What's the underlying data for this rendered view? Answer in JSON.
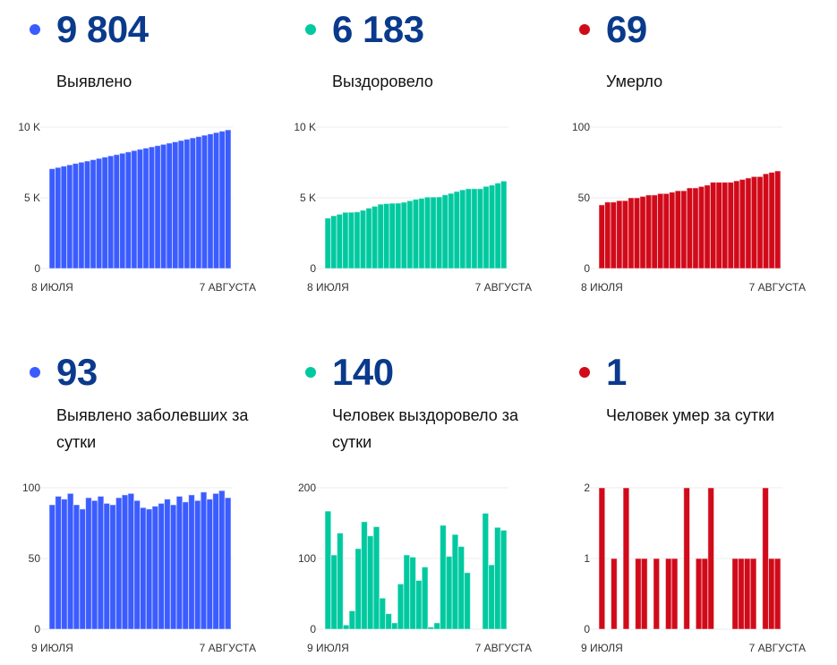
{
  "panels": [
    {
      "id": "cases-total",
      "value": "9 804",
      "label": "Выявлено",
      "color": "#3b5cff",
      "chart_data": {
        "type": "bar",
        "categories_range": [
          "8 ИЮЛЯ",
          "7 АВГУСТА"
        ],
        "x_labels": [
          "8 ИЮЛЯ",
          "7 АВГУСТА"
        ],
        "yticks": [
          {
            "v": 0,
            "t": "0"
          },
          {
            "v": 5000,
            "t": "5 K"
          },
          {
            "v": 10000,
            "t": "10 K"
          }
        ],
        "ylim": [
          0,
          10000
        ],
        "values": [
          7058,
          7146,
          7240,
          7332,
          7428,
          7516,
          7601,
          7694,
          7785,
          7879,
          7968,
          8056,
          8149,
          8244,
          8340,
          8431,
          8517,
          8602,
          8689,
          8778,
          8870,
          8958,
          9052,
          9142,
          9237,
          9328,
          9425,
          9517,
          9613,
          9711,
          9804
        ]
      }
    },
    {
      "id": "recovered-total",
      "value": "6 183",
      "label": "Выздоровело",
      "color": "#00c9a0",
      "chart_data": {
        "type": "bar",
        "x_labels": [
          "8 ИЮЛЯ",
          "7 АВГУСТА"
        ],
        "yticks": [
          {
            "v": 0,
            "t": "0"
          },
          {
            "v": 5000,
            "t": "5 K"
          },
          {
            "v": 10000,
            "t": "10 K"
          }
        ],
        "ylim": [
          0,
          10000
        ],
        "values": [
          3565,
          3732,
          3837,
          3973,
          3979,
          4005,
          4119,
          4271,
          4403,
          4548,
          4592,
          4614,
          4623,
          4687,
          4792,
          4894,
          4963,
          5051,
          5054,
          5063,
          5210,
          5313,
          5447,
          5564,
          5644,
          5644,
          5644,
          5808,
          5899,
          6043,
          6183
        ]
      }
    },
    {
      "id": "deaths-total",
      "value": "69",
      "label": "Умерло",
      "color": "#d10a1a",
      "chart_data": {
        "type": "bar",
        "x_labels": [
          "8 ИЮЛЯ",
          "7 АВГУСТА"
        ],
        "yticks": [
          {
            "v": 0,
            "t": "0"
          },
          {
            "v": 50,
            "t": "50"
          },
          {
            "v": 100,
            "t": "100"
          }
        ],
        "ylim": [
          0,
          100
        ],
        "values": [
          45,
          47,
          47,
          48,
          48,
          50,
          50,
          51,
          52,
          52,
          53,
          53,
          54,
          55,
          55,
          57,
          57,
          58,
          59,
          61,
          61,
          61,
          61,
          62,
          63,
          64,
          65,
          65,
          67,
          68,
          69
        ]
      }
    },
    {
      "id": "cases-daily",
      "value": "93",
      "label": "Выявлено заболевших за сутки",
      "color": "#3b5cff",
      "chart_data": {
        "type": "bar",
        "x_labels": [
          "9 ИЮЛЯ",
          "7 АВГУСТА"
        ],
        "yticks": [
          {
            "v": 0,
            "t": "0"
          },
          {
            "v": 50,
            "t": "50"
          },
          {
            "v": 100,
            "t": "100"
          }
        ],
        "ylim": [
          0,
          100
        ],
        "values": [
          88,
          94,
          92,
          96,
          88,
          85,
          93,
          91,
          94,
          89,
          88,
          93,
          95,
          96,
          91,
          86,
          85,
          87,
          89,
          92,
          88,
          94,
          90,
          95,
          91,
          97,
          92,
          96,
          98,
          93
        ]
      }
    },
    {
      "id": "recovered-daily",
      "value": "140",
      "label": "Человек выздоровело за сутки",
      "color": "#00c9a0",
      "chart_data": {
        "type": "bar",
        "x_labels": [
          "9 ИЮЛЯ",
          "7 АВГУСТА"
        ],
        "yticks": [
          {
            "v": 0,
            "t": "0"
          },
          {
            "v": 100,
            "t": "100"
          },
          {
            "v": 200,
            "t": "200"
          }
        ],
        "ylim": [
          0,
          200
        ],
        "values": [
          167,
          105,
          136,
          6,
          26,
          114,
          152,
          132,
          145,
          44,
          22,
          9,
          64,
          105,
          102,
          69,
          88,
          3,
          9,
          147,
          103,
          134,
          117,
          80,
          0,
          0,
          164,
          91,
          144,
          140
        ]
      }
    },
    {
      "id": "deaths-daily",
      "value": "1",
      "label": "Человек умер за сутки",
      "color": "#d10a1a",
      "chart_data": {
        "type": "bar",
        "x_labels": [
          "9 ИЮЛЯ",
          "7 АВГУСТА"
        ],
        "yticks": [
          {
            "v": 0,
            "t": "0"
          },
          {
            "v": 1,
            "t": "1"
          },
          {
            "v": 2,
            "t": "2"
          }
        ],
        "ylim": [
          0,
          2
        ],
        "values": [
          2,
          0,
          1,
          0,
          2,
          0,
          1,
          1,
          0,
          1,
          0,
          1,
          1,
          0,
          2,
          0,
          1,
          1,
          2,
          0,
          0,
          0,
          1,
          1,
          1,
          1,
          0,
          2,
          1,
          1
        ]
      }
    }
  ]
}
